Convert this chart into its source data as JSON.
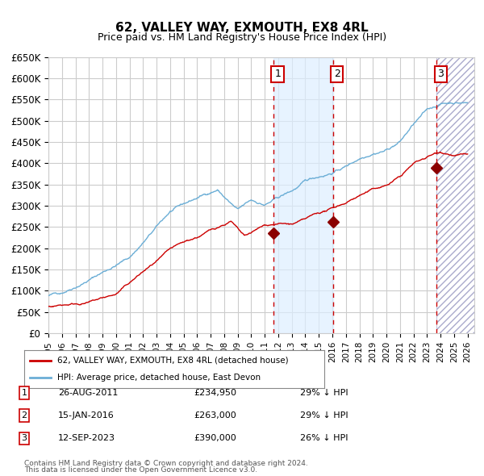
{
  "title": "62, VALLEY WAY, EXMOUTH, EX8 4RL",
  "subtitle": "Price paid vs. HM Land Registry's House Price Index (HPI)",
  "hpi_legend": "HPI: Average price, detached house, East Devon",
  "price_legend": "62, VALLEY WAY, EXMOUTH, EX8 4RL (detached house)",
  "footer1": "Contains HM Land Registry data © Crown copyright and database right 2024.",
  "footer2": "This data is licensed under the Open Government Licence v3.0.",
  "transactions": [
    {
      "num": 1,
      "date": "26-AUG-2011",
      "price": 234950,
      "pct": "29%",
      "dir": "↓"
    },
    {
      "num": 2,
      "date": "15-JAN-2016",
      "price": 263000,
      "pct": "29%",
      "dir": "↓"
    },
    {
      "num": 3,
      "date": "12-SEP-2023",
      "price": 390000,
      "pct": "26%",
      "dir": "↓"
    }
  ],
  "transaction_dates_decimal": [
    2011.65,
    2016.04,
    2023.71
  ],
  "transaction_prices": [
    234950,
    263000,
    390000
  ],
  "ylim": [
    0,
    650000
  ],
  "xlim_start": 1995.0,
  "xlim_end": 2026.5,
  "hpi_color": "#6baed6",
  "price_color": "#cc0000",
  "marker_color": "#8b0000",
  "vline_color": "#cc0000",
  "shade_color": "#ddeeff",
  "grid_color": "#cccccc",
  "background_color": "#ffffff",
  "hatch_color": "#aaaacc",
  "box_color": "#cc0000",
  "yticks": [
    0,
    50000,
    100000,
    150000,
    200000,
    250000,
    300000,
    350000,
    400000,
    450000,
    500000,
    550000,
    600000,
    650000
  ],
  "ytick_labels": [
    "£0",
    "£50K",
    "£100K",
    "£150K",
    "£200K",
    "£250K",
    "£300K",
    "£350K",
    "£400K",
    "£450K",
    "£500K",
    "£550K",
    "£600K",
    "£650K"
  ],
  "xtick_years": [
    1995,
    1996,
    1997,
    1998,
    1999,
    2000,
    2001,
    2002,
    2003,
    2004,
    2005,
    2006,
    2007,
    2008,
    2009,
    2010,
    2011,
    2012,
    2013,
    2014,
    2015,
    2016,
    2017,
    2018,
    2019,
    2020,
    2021,
    2022,
    2023,
    2024,
    2025,
    2026
  ]
}
